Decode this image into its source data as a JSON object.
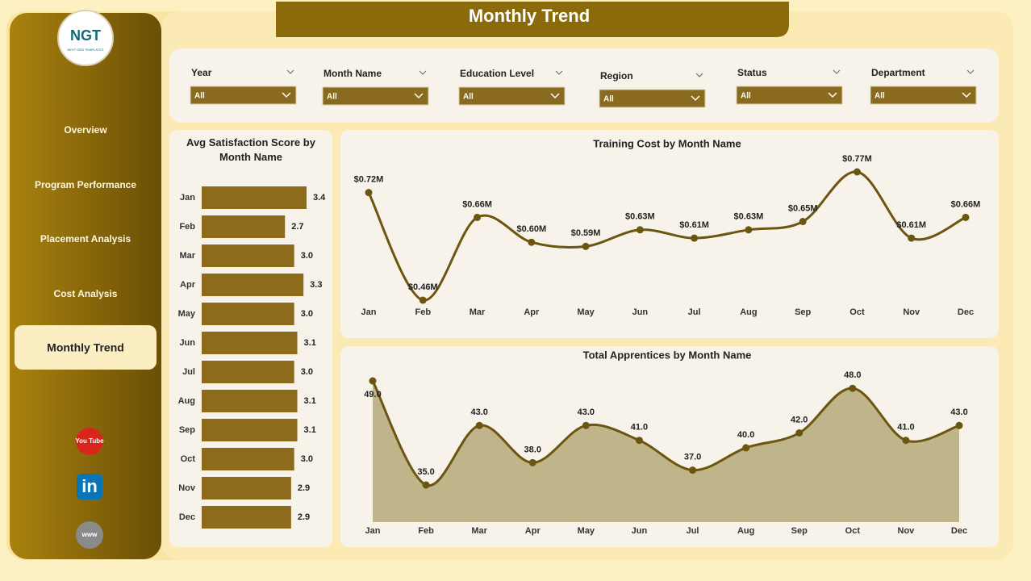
{
  "header": {
    "title": "Monthly Trend"
  },
  "logo": {
    "text": "NGT",
    "subtitle": "NEXT GEN TEMPLATES"
  },
  "nav": [
    "Overview",
    "Program Performance",
    "Placement Analysis",
    "Cost Analysis",
    "Monthly Trend"
  ],
  "social": [
    "You Tube",
    "in",
    "www"
  ],
  "filters": [
    {
      "label": "Year",
      "value": "All"
    },
    {
      "label": "Month Name",
      "value": "All"
    },
    {
      "label": "Education Level",
      "value": "All"
    },
    {
      "label": "Region",
      "value": "All"
    },
    {
      "label": "Status",
      "value": "All"
    },
    {
      "label": "Department",
      "value": "All"
    }
  ],
  "chart_data": [
    {
      "type": "hbar",
      "title": "Avg Satisfaction Score by Month Name",
      "color": "#8c6c1c",
      "categories": [
        "Jan",
        "Feb",
        "Mar",
        "Apr",
        "May",
        "Jun",
        "Jul",
        "Aug",
        "Sep",
        "Oct",
        "Nov",
        "Dec"
      ],
      "values": [
        3.4,
        2.7,
        3.0,
        3.3,
        3.0,
        3.1,
        3.0,
        3.1,
        3.1,
        3.0,
        2.9,
        2.9
      ],
      "value_labels": [
        "3.4",
        "2.7",
        "3.0",
        "3.3",
        "3.0",
        "3.1",
        "3.0",
        "3.1",
        "3.1",
        "3.0",
        "2.9",
        "2.9"
      ]
    },
    {
      "type": "line",
      "title": "Training Cost by Month Name",
      "color": "#6b5510",
      "categories": [
        "Jan",
        "Feb",
        "Mar",
        "Apr",
        "May",
        "Jun",
        "Jul",
        "Aug",
        "Sep",
        "Oct",
        "Nov",
        "Dec"
      ],
      "values": [
        720000,
        460000,
        660000,
        600000,
        590000,
        630000,
        610000,
        630000,
        650000,
        770000,
        610000,
        660000
      ],
      "value_labels": [
        "$0.72M",
        "$0.46M",
        "$0.66M",
        "$0.60M",
        "$0.59M",
        "$0.63M",
        "$0.61M",
        "$0.63M",
        "$0.65M",
        "$0.77M",
        "$0.61M",
        "$0.66M"
      ]
    },
    {
      "type": "area",
      "title": "Total Apprentices by Month Name",
      "color": "#6b5510",
      "fill": "#bfb48a",
      "categories": [
        "Jan",
        "Feb",
        "Mar",
        "Apr",
        "May",
        "Jun",
        "Jul",
        "Aug",
        "Sep",
        "Oct",
        "Nov",
        "Dec"
      ],
      "values": [
        49,
        35,
        43,
        38,
        43,
        41,
        37,
        40,
        42,
        48,
        41,
        43
      ],
      "value_labels": [
        "49.0",
        "35.0",
        "43.0",
        "38.0",
        "43.0",
        "41.0",
        "37.0",
        "40.0",
        "42.0",
        "48.0",
        "41.0",
        "43.0"
      ]
    }
  ]
}
